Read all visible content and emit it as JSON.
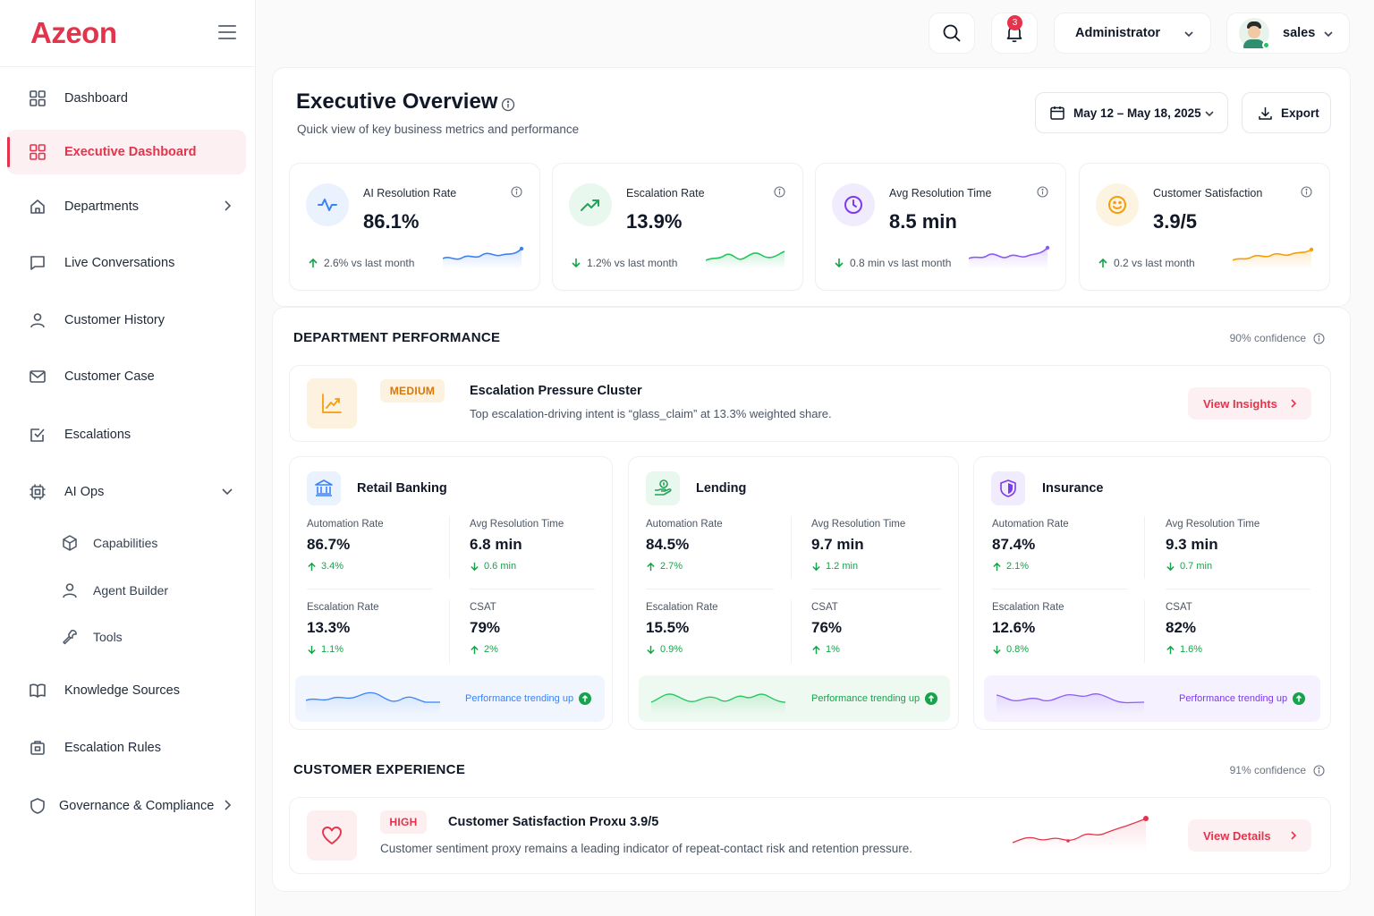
{
  "app": {
    "logo": "Azeon"
  },
  "sidebar": {
    "items": [
      {
        "label": "Dashboard"
      },
      {
        "label": "Executive Dashboard"
      },
      {
        "label": "Departments"
      },
      {
        "label": "Live Conversations"
      },
      {
        "label": "Customer History"
      },
      {
        "label": "Customer Case"
      },
      {
        "label": "Escalations"
      },
      {
        "label": "AI Ops"
      },
      {
        "label": "Knowledge Sources"
      },
      {
        "label": "Escalation Rules"
      },
      {
        "label": "Governance & Compliance"
      }
    ],
    "ai_ops_sub": [
      {
        "label": "Capabilities"
      },
      {
        "label": "Agent Builder"
      },
      {
        "label": "Tools"
      }
    ]
  },
  "topbar": {
    "notification_count": "3",
    "role": "Administrator",
    "user": "sales"
  },
  "header": {
    "title": "Executive Overview",
    "subtitle": "Quick view of key business metrics and performance",
    "date_range": "May 12 – May 18, 2025",
    "export_label": "Export"
  },
  "kpis": [
    {
      "label": "AI Resolution Rate",
      "value": "86.1%",
      "delta": "2.6% vs last month",
      "direction": "up",
      "color": "#3b82f6"
    },
    {
      "label": "Escalation Rate",
      "value": "13.9%",
      "delta": "1.2% vs last month",
      "direction": "down",
      "color": "#22c55e"
    },
    {
      "label": "Avg Resolution Time",
      "value": "8.5 min",
      "delta": "0.8 min vs last month",
      "direction": "down",
      "color": "#8b5cf6"
    },
    {
      "label": "Customer Satisfaction",
      "value": "3.9/5",
      "delta": "0.2 vs last month",
      "direction": "up",
      "color": "#f59e0b"
    }
  ],
  "department_performance": {
    "heading": "DEPARTMENT PERFORMANCE",
    "confidence": "90% confidence",
    "alert": {
      "severity": "MEDIUM",
      "title": "Escalation Pressure Cluster",
      "description": "Top escalation-driving intent is “glass_claim” at 13.3% weighted share.",
      "action": "View Insights"
    },
    "departments": [
      {
        "name": "Retail Banking",
        "color": "#3b82f6",
        "automation_label": "Automation Rate",
        "automation": "86.7%",
        "automation_delta": "3.4%",
        "avg_label": "Avg Resolution Time",
        "avg": "6.8 min",
        "avg_delta": "0.6 min",
        "esc_label": "Escalation Rate",
        "esc": "13.3%",
        "esc_delta": "1.1%",
        "csat_label": "CSAT",
        "csat": "79%",
        "csat_delta": "2%",
        "trend": "Performance trending up"
      },
      {
        "name": "Lending",
        "color": "#22c55e",
        "automation_label": "Automation Rate",
        "automation": "84.5%",
        "automation_delta": "2.7%",
        "avg_label": "Avg Resolution Time",
        "avg": "9.7 min",
        "avg_delta": "1.2 min",
        "esc_label": "Escalation Rate",
        "esc": "15.5%",
        "esc_delta": "0.9%",
        "csat_label": "CSAT",
        "csat": "76%",
        "csat_delta": "1%",
        "trend": "Performance trending up"
      },
      {
        "name": "Insurance",
        "color": "#8b5cf6",
        "automation_label": "Automation Rate",
        "automation": "87.4%",
        "automation_delta": "2.1%",
        "avg_label": "Avg Resolution Time",
        "avg": "9.3 min",
        "avg_delta": "0.7 min",
        "esc_label": "Escalation Rate",
        "esc": "12.6%",
        "esc_delta": "0.8%",
        "csat_label": "CSAT",
        "csat": "82%",
        "csat_delta": "1.6%",
        "trend": "Performance trending up"
      }
    ]
  },
  "customer_experience": {
    "heading": "CUSTOMER EXPERIENCE",
    "confidence": "91% confidence",
    "alert": {
      "severity": "HIGH",
      "title": "Customer Satisfaction Proxu 3.9/5",
      "description": "Customer sentiment proxy remains a leading indicator of repeat-contact risk and retention pressure.",
      "action": "View Details"
    }
  }
}
